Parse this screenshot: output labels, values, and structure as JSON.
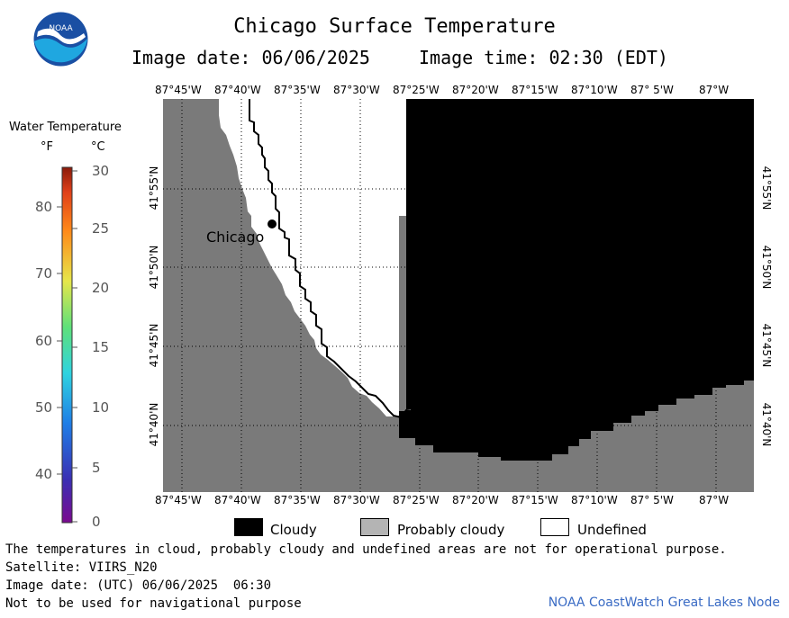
{
  "header": {
    "title": "Chicago Surface Temperature",
    "image_date_label": "Image date: 06/06/2025",
    "image_time_label": "Image time: 02:30 (EDT)",
    "logo_text": "NOAA"
  },
  "legend": {
    "title": "Water Temperature",
    "unit_f": "°F",
    "unit_c": "°C",
    "fahrenheit_ticks": [
      "80",
      "70",
      "60",
      "50",
      "40"
    ],
    "celsius_ticks": [
      "30",
      "25",
      "20",
      "15",
      "10",
      "5",
      "0"
    ]
  },
  "map": {
    "lon_labels": [
      "87°45'W",
      "87°40'W",
      "87°35'W",
      "87°30'W",
      "87°25'W",
      "87°20'W",
      "87°15'W",
      "87°10'W",
      "87° 5'W",
      "87°W"
    ],
    "lat_labels": [
      "41°55'N",
      "41°50'N",
      "41°45'N",
      "41°40'N"
    ],
    "city_label": "Chicago",
    "colors": {
      "land": "#7a7a7a",
      "cloudy": "#000000",
      "undefined": "#ffffff",
      "grid": "#000000"
    }
  },
  "key": {
    "cloudy": "Cloudy",
    "probably_cloudy": "Probably cloudy",
    "undefined": "Undefined",
    "colors": {
      "cloudy": "#000000",
      "probably_cloudy": "#b4b4b4",
      "undefined": "#ffffff"
    }
  },
  "footer": {
    "note": "The temperatures in cloud, probably cloudy and undefined areas are not for operational purpose.",
    "satellite": "Satellite: VIIRS_N20",
    "utc_date": "Image date: (UTC) 06/06/2025  06:30",
    "nav_warning": "Not to be used for navigational purpose",
    "credit": "NOAA CoastWatch Great Lakes Node"
  }
}
